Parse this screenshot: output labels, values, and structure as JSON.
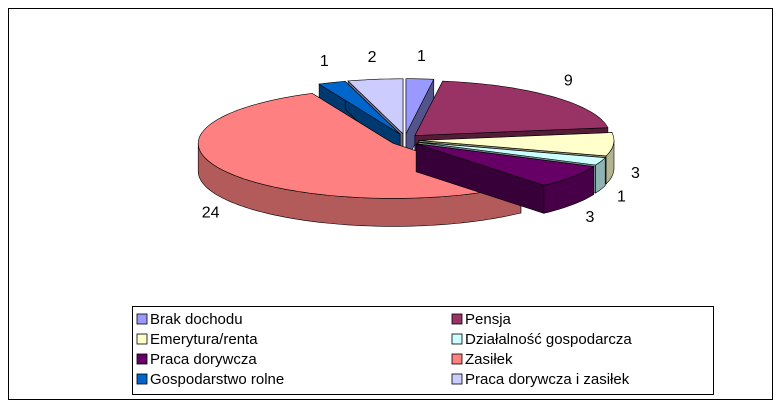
{
  "chart_data": {
    "type": "pie",
    "categories": [
      "Brak dochodu",
      "Pensja",
      "Emerytura/renta",
      "Działalność gospodarcza",
      "Praca dorywcza",
      "Zasiłek",
      "Gospodarstwo rolne",
      "Praca dorywcza i zasiłek"
    ],
    "values": [
      1,
      9,
      3,
      1,
      3,
      24,
      1,
      2
    ],
    "colors": [
      "#9999ff",
      "#993366",
      "#ffffcc",
      "#ccffff",
      "#660066",
      "#ff8080",
      "#0066cc",
      "#ccccff"
    ],
    "legend": "bottom"
  }
}
